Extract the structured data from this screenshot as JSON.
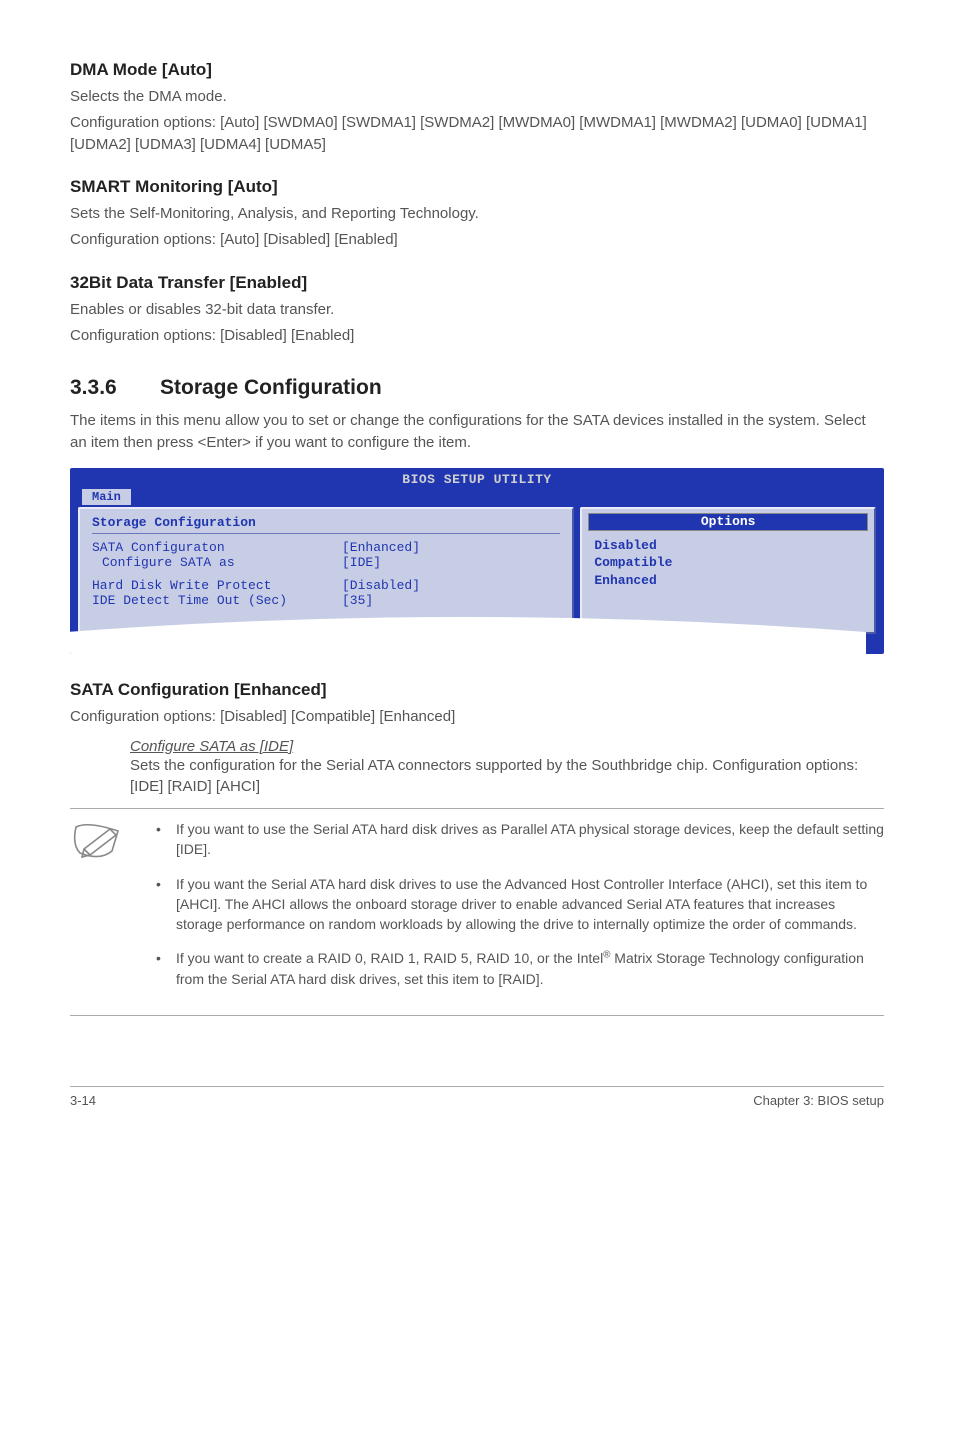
{
  "dma": {
    "heading": "DMA Mode [Auto]",
    "line1": "Selects the DMA mode.",
    "line2": "Configuration options: [Auto] [SWDMA0] [SWDMA1] [SWDMA2] [MWDMA0] [MWDMA1] [MWDMA2] [UDMA0] [UDMA1] [UDMA2] [UDMA3] [UDMA4] [UDMA5]"
  },
  "smart": {
    "heading": "SMART Monitoring [Auto]",
    "line1": "Sets the Self-Monitoring, Analysis, and Reporting Technology.",
    "line2": "Configuration options: [Auto] [Disabled] [Enabled]"
  },
  "bit32": {
    "heading": "32Bit Data Transfer [Enabled]",
    "line1": "Enables or disables 32-bit data transfer.",
    "line2": "Configuration options: [Disabled] [Enabled]"
  },
  "storage_section": {
    "num": "3.3.6",
    "title": "Storage Configuration",
    "intro": "The items in this menu allow you to set or change the configurations for the SATA devices installed in the system. Select an item then press <Enter> if you want to configure the item."
  },
  "bios": {
    "title": "BIOS SETUP UTILITY",
    "tab": "Main",
    "panel_header": "Storage Configuration",
    "rows": [
      {
        "label": "SATA Configuraton",
        "value": "[Enhanced]",
        "indent": false
      },
      {
        "label": "Configure SATA as",
        "value": "[IDE]",
        "indent": true
      }
    ],
    "rows2": [
      {
        "label": "Hard Disk Write Protect",
        "value": "[Disabled]",
        "indent": false
      },
      {
        "label": "IDE Detect Time Out (Sec)",
        "value": "[35]",
        "indent": false
      }
    ],
    "options_title": "Options",
    "options": [
      "Disabled",
      "Compatible",
      "Enhanced"
    ],
    "colors": {
      "bg": "#2036b0",
      "panel": "#c8cde6",
      "text": "#2036b0",
      "title_text": "#d0d0d0",
      "options_title_bg": "#2036b0",
      "options_title_fg": "#ffffff"
    }
  },
  "sata_config": {
    "heading": "SATA Configuration [Enhanced]",
    "line1": "Configuration options: [Disabled] [Compatible] [Enhanced]",
    "sub_heading": "Configure SATA as [IDE]",
    "sub_line1": "Sets the configuration for the Serial ATA connectors supported by the Southbridge chip. Configuration options: [IDE] [RAID] [AHCI]"
  },
  "notes": {
    "items": [
      "If you want to use the Serial ATA hard disk drives as Parallel ATA physical storage devices, keep the default setting [IDE].",
      "If you want the Serial ATA hard disk drives to use the Advanced Host Controller Interface (AHCI), set this item to [AHCI]. The AHCI allows the onboard storage driver to enable advanced Serial ATA features that increases storage performance on random workloads by allowing the drive to internally optimize the order of commands.",
      "If you want to create a RAID 0, RAID 1, RAID 5, RAID 10, or the Intel® Matrix Storage Technology configuration from the Serial ATA hard disk drives, set this item to [RAID]."
    ]
  },
  "footer": {
    "left": "3-14",
    "right": "Chapter 3: BIOS setup"
  }
}
